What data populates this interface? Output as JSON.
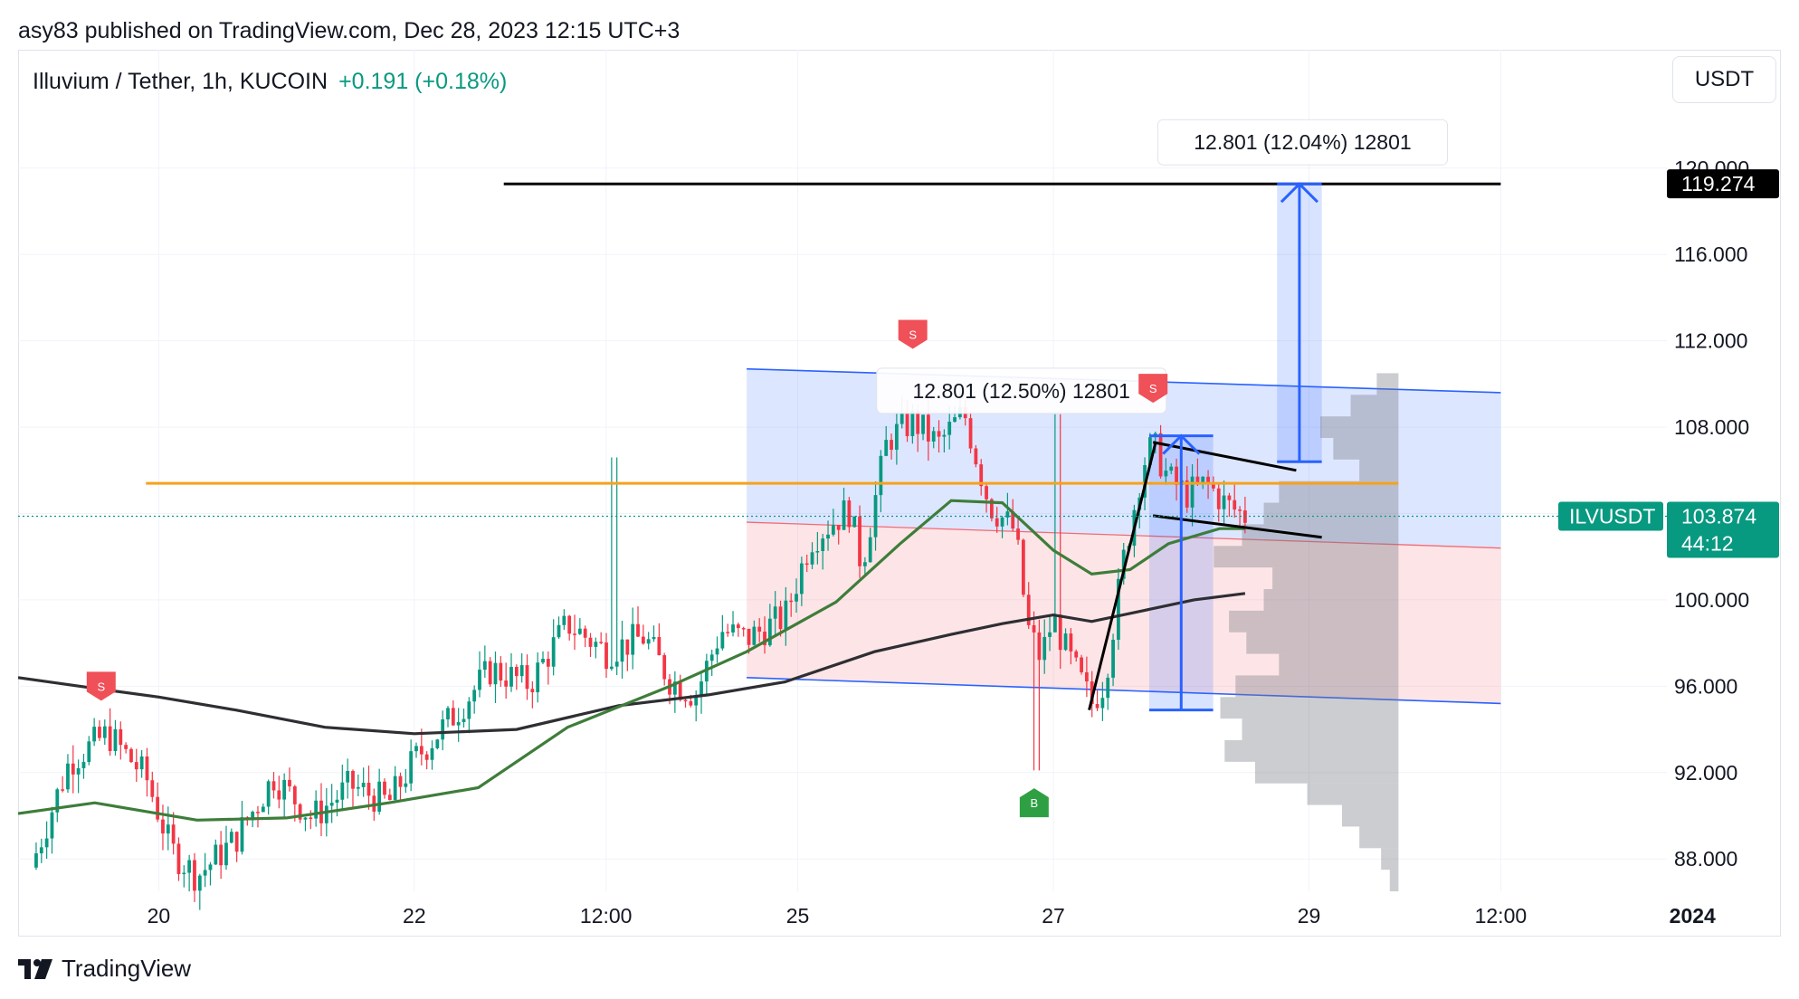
{
  "header": {
    "published": "asy83 published on TradingView.com, Dec 28, 2023 12:15 UTC+3",
    "symbol": "Illuvium / Tether, 1h, KUCOIN",
    "change": "+0.191 (+0.18%)",
    "currency": "USDT"
  },
  "footer": {
    "brand": "TradingView"
  },
  "colors": {
    "up": "#089981",
    "down": "#f23645",
    "ma50": "#3e7d3a",
    "ma200": "#2e2e33",
    "blue": "#2962ff",
    "orange": "#f7a21b"
  },
  "chart_data": {
    "type": "candlestick",
    "x_ticks": [
      "20",
      "22",
      "12:00",
      "25",
      "27",
      "29",
      "12:00",
      "2024"
    ],
    "y_ticks": [
      "88.000",
      "92.000",
      "96.000",
      "100.000",
      "104.000",
      "108.000",
      "112.000",
      "116.000",
      "120.000"
    ],
    "ylim": [
      86.5,
      121.5
    ],
    "last_price": {
      "symbol": "ILVUSDT",
      "price": "103.874",
      "countdown": "44:12",
      "value": 103.874
    },
    "target": {
      "label": "119.274",
      "value": 119.274
    },
    "orange_level": 105.4,
    "measure_labels": {
      "upper": "12.801 (12.04%) 12801",
      "lower": "12.801 (12.50%) 12801"
    },
    "signals": [
      {
        "type": "S",
        "time": 19.55,
        "price": 96.0
      },
      {
        "type": "S",
        "time": 25.9,
        "price": 112.3
      },
      {
        "type": "S",
        "time": 27.78,
        "price": 109.8
      },
      {
        "type": "B",
        "time": 26.85,
        "price": 90.6
      }
    ],
    "price_path": [
      [
        19.0,
        87.6
      ],
      [
        19.3,
        92.5
      ],
      [
        19.6,
        93.8
      ],
      [
        19.9,
        91.8
      ],
      [
        20.1,
        88.4
      ],
      [
        20.3,
        87.2
      ],
      [
        20.6,
        88.9
      ],
      [
        20.9,
        91.8
      ],
      [
        21.2,
        89.9
      ],
      [
        21.5,
        91.4
      ],
      [
        21.8,
        90.6
      ],
      [
        22.0,
        92.6
      ],
      [
        22.3,
        94.6
      ],
      [
        22.6,
        96.8
      ],
      [
        22.9,
        96.1
      ],
      [
        23.2,
        98.9
      ],
      [
        23.5,
        97.6
      ],
      [
        23.8,
        98.3
      ],
      [
        24.0,
        96.3
      ],
      [
        24.2,
        95.6
      ],
      [
        24.4,
        98.6
      ],
      [
        24.6,
        98.2
      ],
      [
        24.9,
        99.2
      ],
      [
        25.1,
        102.8
      ],
      [
        25.4,
        104.2
      ],
      [
        25.5,
        101.6
      ],
      [
        25.7,
        107.4
      ],
      [
        25.9,
        108.3
      ],
      [
        26.1,
        107.2
      ],
      [
        26.3,
        108.7
      ],
      [
        26.5,
        104.4
      ],
      [
        26.7,
        103.2
      ],
      [
        26.8,
        98.7
      ],
      [
        26.9,
        97.3
      ],
      [
        27.0,
        99.2
      ],
      [
        27.1,
        97.6
      ],
      [
        27.3,
        95.2
      ],
      [
        27.4,
        96.2
      ],
      [
        27.55,
        101.9
      ],
      [
        27.7,
        106.3
      ],
      [
        27.78,
        107.2
      ],
      [
        27.9,
        105.6
      ],
      [
        28.05,
        104.9
      ],
      [
        28.2,
        105.4
      ],
      [
        28.35,
        104.4
      ],
      [
        28.5,
        103.9
      ]
    ],
    "candle_count": 230,
    "ma50": [
      [
        18.9,
        90.1
      ],
      [
        19.5,
        90.6
      ],
      [
        20.3,
        89.8
      ],
      [
        21.0,
        89.9
      ],
      [
        21.8,
        90.6
      ],
      [
        22.5,
        91.3
      ],
      [
        23.2,
        94.1
      ],
      [
        24.0,
        96.0
      ],
      [
        24.6,
        97.6
      ],
      [
        25.3,
        99.9
      ],
      [
        25.8,
        102.6
      ],
      [
        26.2,
        104.6
      ],
      [
        26.6,
        104.5
      ],
      [
        27.0,
        102.3
      ],
      [
        27.3,
        101.2
      ],
      [
        27.6,
        101.4
      ],
      [
        27.9,
        102.6
      ],
      [
        28.3,
        103.3
      ],
      [
        28.5,
        103.3
      ]
    ],
    "ma200": [
      [
        18.9,
        96.4
      ],
      [
        19.5,
        95.9
      ],
      [
        20.0,
        95.5
      ],
      [
        20.6,
        94.9
      ],
      [
        21.3,
        94.1
      ],
      [
        22.0,
        93.8
      ],
      [
        22.8,
        94.0
      ],
      [
        23.6,
        95.1
      ],
      [
        24.3,
        95.6
      ],
      [
        24.9,
        96.2
      ],
      [
        25.6,
        97.6
      ],
      [
        26.2,
        98.4
      ],
      [
        26.6,
        98.9
      ],
      [
        27.0,
        99.3
      ],
      [
        27.3,
        99.0
      ],
      [
        27.7,
        99.5
      ],
      [
        28.1,
        100.0
      ],
      [
        28.5,
        100.3
      ]
    ],
    "channel_upper": [
      [
        24.6,
        110.7
      ],
      [
        30.5,
        109.6
      ]
    ],
    "channel_lower": [
      [
        24.6,
        96.4
      ],
      [
        30.5,
        95.2
      ]
    ],
    "channel_mid": [
      [
        24.6,
        103.6
      ],
      [
        30.5,
        102.4
      ]
    ],
    "flag_upper": [
      [
        27.78,
        107.3
      ],
      [
        28.9,
        106.0
      ]
    ],
    "flag_lower": [
      [
        27.78,
        103.9
      ],
      [
        29.1,
        102.9
      ]
    ],
    "pole": [
      [
        27.28,
        94.9
      ],
      [
        27.8,
        107.3
      ]
    ],
    "target_line": [
      [
        22.7,
        119.27
      ],
      [
        30.5,
        119.27
      ]
    ],
    "measure_upper": {
      "x": [
        28.75,
        29.1
      ],
      "y": [
        106.4,
        119.27
      ]
    },
    "measure_lower": {
      "x": [
        27.75,
        28.25
      ],
      "y": [
        94.9,
        107.6
      ]
    },
    "volume_profile_x": [
      28.0,
      29.7
    ],
    "volume_profile": [
      [
        110.0,
        0.1
      ],
      [
        109.0,
        0.22
      ],
      [
        108.0,
        0.36
      ],
      [
        107.0,
        0.3
      ],
      [
        106.0,
        0.18
      ],
      [
        105.0,
        0.55
      ],
      [
        104.0,
        0.62
      ],
      [
        103.0,
        0.72
      ],
      [
        102.0,
        0.85
      ],
      [
        101.0,
        0.58
      ],
      [
        100.0,
        0.62
      ],
      [
        99.0,
        0.78
      ],
      [
        98.0,
        0.7
      ],
      [
        97.0,
        0.55
      ],
      [
        96.0,
        0.75
      ],
      [
        95.0,
        0.82
      ],
      [
        94.0,
        0.72
      ],
      [
        93.0,
        0.8
      ],
      [
        92.0,
        0.66
      ],
      [
        91.0,
        0.42
      ],
      [
        90.0,
        0.26
      ],
      [
        89.0,
        0.18
      ],
      [
        88.0,
        0.08
      ],
      [
        87.0,
        0.04
      ]
    ]
  }
}
